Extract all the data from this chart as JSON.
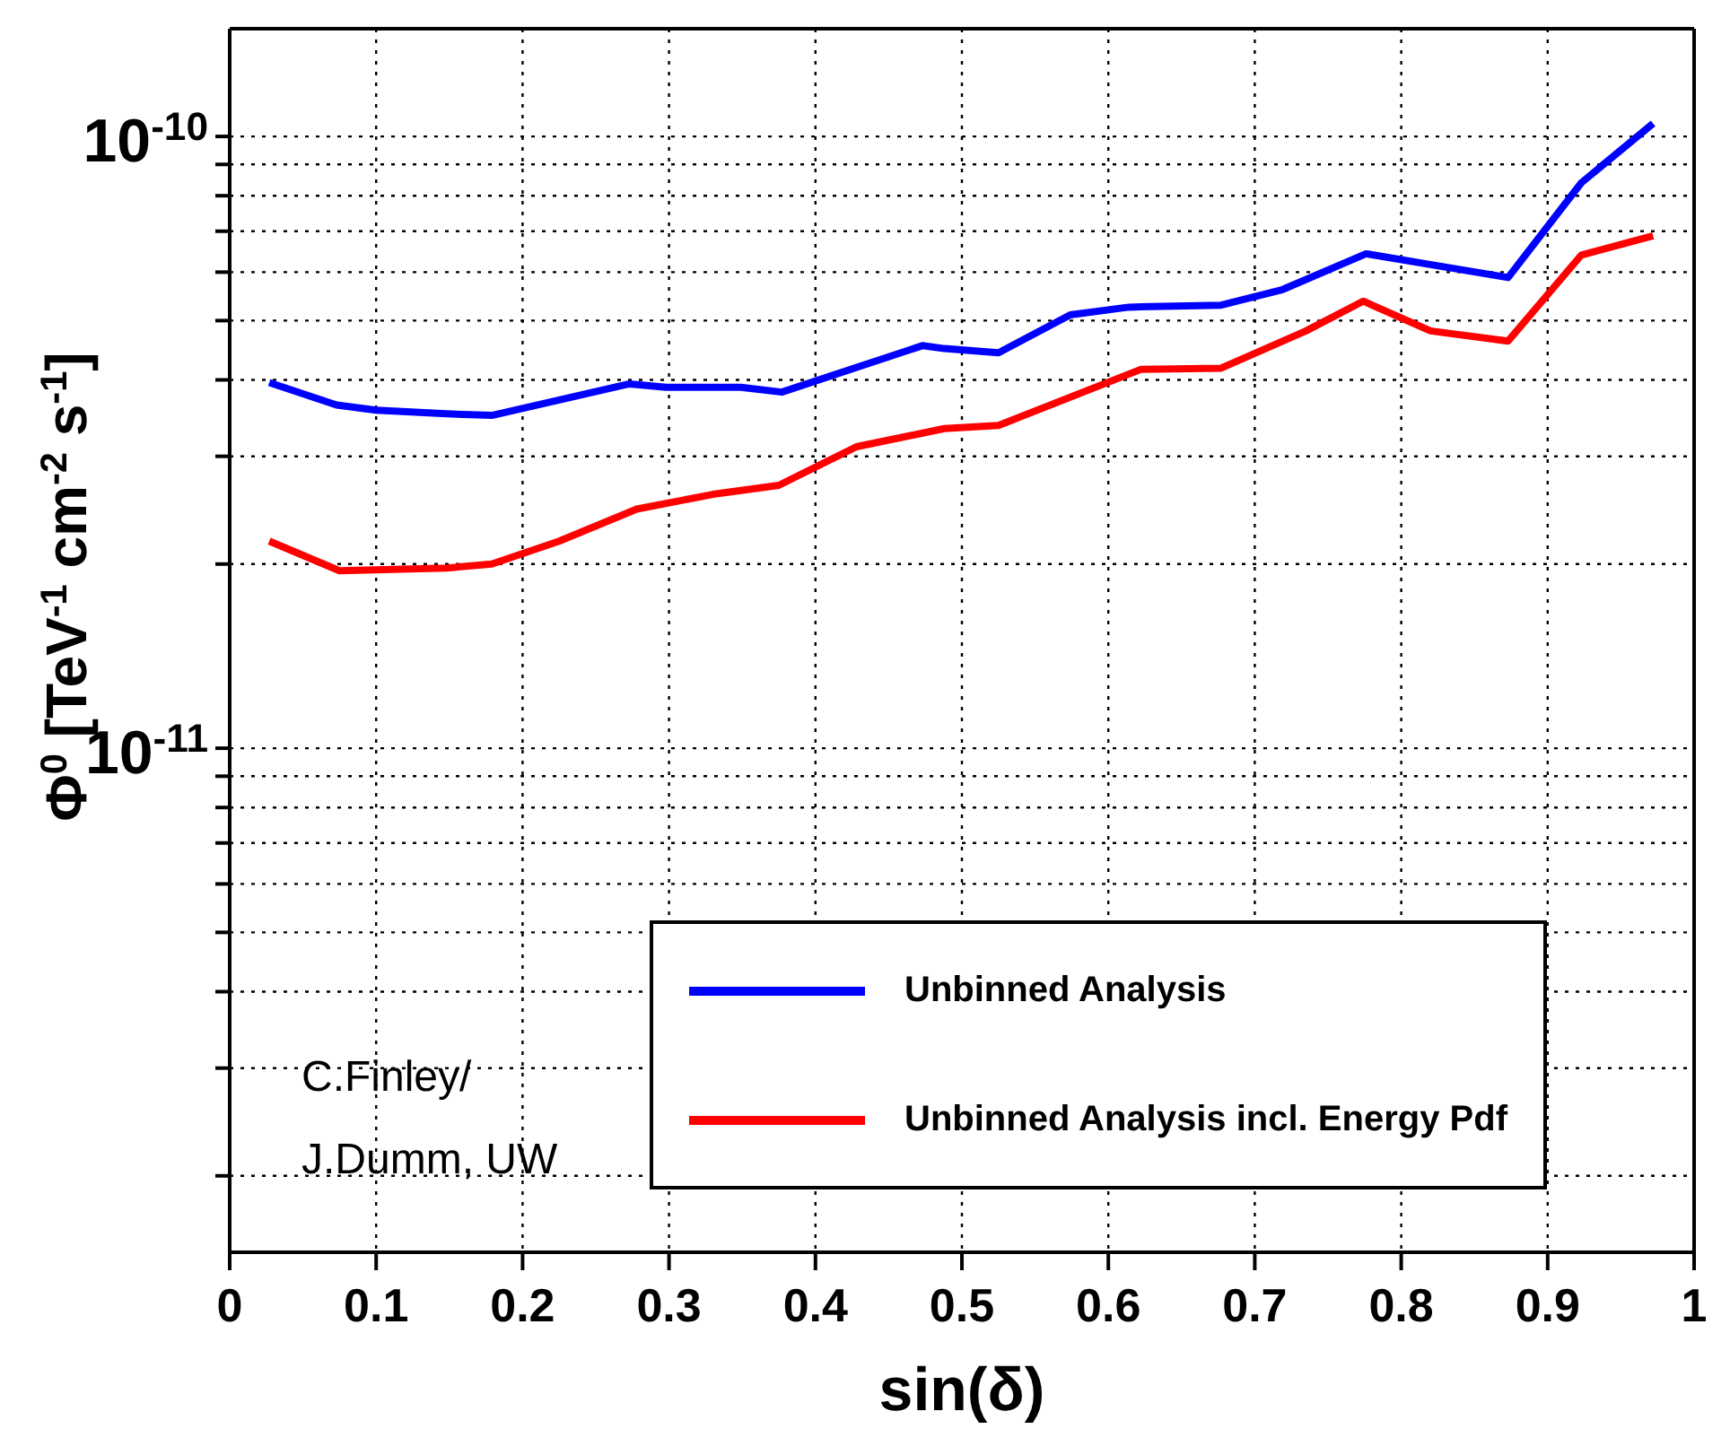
{
  "chart_data": {
    "type": "line",
    "xlabel": "sin(δ)",
    "ylabel": "Φ$^{0}$ [TeV$^{-1}$ cm$^{-2}$ s$^{-1}$]",
    "log": "y",
    "grid": true,
    "legend": "bottom right",
    "marker": "none",
    "line_style": "solid",
    "xlim": [
      0,
      1
    ],
    "xticks": [
      0,
      0.1,
      0.2,
      0.3,
      0.4,
      0.5,
      0.6,
      0.7,
      0.8,
      0.9,
      1
    ],
    "ylim": [
      1.5e-12,
      1.5e-10
    ],
    "yticks": [
      {
        "value": 2e-12,
        "label": null
      },
      {
        "value": 3e-12,
        "label": null
      },
      {
        "value": 4e-12,
        "label": null
      },
      {
        "value": 5e-12,
        "label": null
      },
      {
        "value": 6e-12,
        "label": null
      },
      {
        "value": 7e-12,
        "label": null
      },
      {
        "value": 8e-12,
        "label": null
      },
      {
        "value": 9e-12,
        "label": null
      },
      {
        "value": 1e-11,
        "label": "10$^{-11}$"
      },
      {
        "value": 2e-11,
        "label": null
      },
      {
        "value": 3e-11,
        "label": null
      },
      {
        "value": 4e-11,
        "label": null
      },
      {
        "value": 5e-11,
        "label": null
      },
      {
        "value": 6e-11,
        "label": null
      },
      {
        "value": 7e-11,
        "label": null
      },
      {
        "value": 8e-11,
        "label": null
      },
      {
        "value": 9e-11,
        "label": null
      },
      {
        "value": 1e-10,
        "label": "10$^{-10}$"
      }
    ],
    "series": [
      {
        "name": "Unbinned Analysis",
        "color": "#0000ff",
        "x": [
          0.027,
          0.073,
          0.1,
          0.148,
          0.179,
          0.273,
          0.298,
          0.349,
          0.377,
          0.473,
          0.488,
          0.525,
          0.574,
          0.614,
          0.677,
          0.719,
          0.776,
          0.817,
          0.873,
          0.923,
          0.972
        ],
        "values": [
          3.96e-11,
          3.64e-11,
          3.57e-11,
          3.52e-11,
          3.5e-11,
          3.94e-11,
          3.89e-11,
          3.89e-11,
          3.82e-11,
          4.55e-11,
          4.5e-11,
          4.43e-11,
          5.11e-11,
          5.26e-11,
          5.3e-11,
          5.62e-11,
          6.43e-11,
          6.19e-11,
          5.88e-11,
          8.4e-11,
          1.05e-10
        ]
      },
      {
        "name": "Unbinned Analysis incl. Energy Pdf",
        "color": "#ff0000",
        "x": [
          0.027,
          0.075,
          0.148,
          0.179,
          0.225,
          0.278,
          0.33,
          0.375,
          0.428,
          0.488,
          0.525,
          0.622,
          0.677,
          0.735,
          0.774,
          0.82,
          0.873,
          0.923,
          0.972
        ],
        "values": [
          2.18e-11,
          1.95e-11,
          1.97e-11,
          2e-11,
          2.18e-11,
          2.46e-11,
          2.6e-11,
          2.69e-11,
          3.11e-11,
          3.33e-11,
          3.37e-11,
          4.16e-11,
          4.18e-11,
          4.81e-11,
          5.38e-11,
          4.81e-11,
          4.63e-11,
          6.4e-11,
          6.88e-11
        ]
      }
    ],
    "annotations": [
      "C.Finley/",
      "J.Dumm, UW"
    ]
  }
}
